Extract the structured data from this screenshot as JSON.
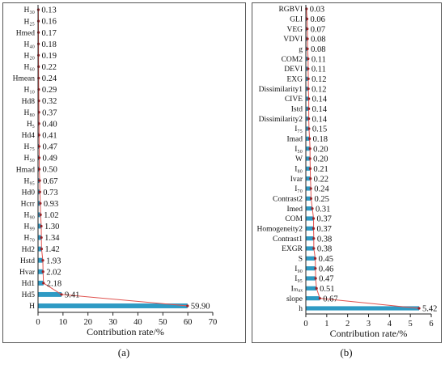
{
  "style": {
    "bar_color": "#2e9ac4",
    "line_color": "#e0534f",
    "dot_color": "#9b2226"
  },
  "panels": [
    {
      "label": "(a)"
    },
    {
      "label": "(b)"
    }
  ],
  "chart_data": [
    {
      "type": "bar",
      "orientation": "horizontal",
      "categories": [
        "H30",
        "H25",
        "Hmed",
        "H40",
        "H20",
        "H60",
        "Hmean",
        "H10",
        "Hd8",
        "H80",
        "H5",
        "Hd4",
        "H75",
        "H50",
        "Hmad",
        "H95",
        "Hd0",
        "Hcrr",
        "H90",
        "H99",
        "H70",
        "Hd2",
        "Hstd",
        "Hvar",
        "Hd1",
        "Hd5",
        "H"
      ],
      "category_labels": [
        "H₃₀",
        "H₂₅",
        "Hmed",
        "H₄₀",
        "H₂₀",
        "H₆₀",
        "Hmean",
        "H₁₀",
        "Hd8",
        "H₈₀",
        "H₅",
        "Hd4",
        "H₇₅",
        "H₅₀",
        "Hmad",
        "H₉₅",
        "Hd0",
        "Hcrr",
        "H₉₀",
        "H₉₉",
        "H₇₀",
        "Hd2",
        "Hstd",
        "Hvar",
        "Hd1",
        "Hd5",
        "H"
      ],
      "values": [
        0.13,
        0.16,
        0.17,
        0.18,
        0.19,
        0.22,
        0.24,
        0.29,
        0.32,
        0.37,
        0.4,
        0.41,
        0.47,
        0.49,
        0.5,
        0.67,
        0.73,
        0.93,
        1.02,
        1.3,
        1.34,
        1.42,
        1.93,
        2.02,
        2.18,
        9.41,
        59.9
      ],
      "value_labels": [
        "0.13",
        "0.16",
        "0.17",
        "0.18",
        "0.19",
        "0.22",
        "0.24",
        "0.29",
        "0.32",
        "0.37",
        "0.40",
        "0.41",
        "0.47",
        "0.49",
        "0.50",
        "0.67",
        "0.73",
        "0.93",
        "1.02",
        "1.30",
        "1.34",
        "1.42",
        "1.93",
        "2.02",
        "2.18",
        "9.41",
        "59.90"
      ],
      "xlabel": "Contribution rate/%",
      "xlim": [
        0,
        70
      ],
      "xticks": [
        0,
        10,
        20,
        30,
        40,
        50,
        60,
        70
      ],
      "grid": false,
      "legend": false
    },
    {
      "type": "bar",
      "orientation": "horizontal",
      "categories": [
        "RGBVI",
        "GLI",
        "VEG",
        "VDVI",
        "g",
        "COM2",
        "DEVI",
        "EXG",
        "Dissimilarity1",
        "CIVE",
        "Istd",
        "Dissimilarity2",
        "I75",
        "Imad",
        "I50",
        "W",
        "I80",
        "Ivar",
        "I70",
        "Contrast2",
        "Imed",
        "COM",
        "Homogeneity2",
        "Contrast1",
        "EXGR",
        "S",
        "I90",
        "I95",
        "Imax",
        "slope",
        "h"
      ],
      "category_labels": [
        "RGBVI",
        "GLI",
        "VEG",
        "VDVI",
        "g",
        "COM2",
        "DEVI",
        "EXG",
        "Dissimilarity1",
        "CIVE",
        "Istd",
        "Dissimilarity2",
        "I₇₅",
        "Imad",
        "I₅₀",
        "W",
        "I₈₀",
        "Ivar",
        "I₇₀",
        "Contrast2",
        "Imed",
        "COM",
        "Homogeneity2",
        "Contrast1",
        "EXGR",
        "S",
        "I₉₀",
        "I₉₅",
        "Iₘₐₓ",
        "slope",
        "h"
      ],
      "values": [
        0.03,
        0.06,
        0.07,
        0.08,
        0.08,
        0.11,
        0.11,
        0.12,
        0.12,
        0.14,
        0.14,
        0.14,
        0.15,
        0.18,
        0.2,
        0.2,
        0.21,
        0.22,
        0.24,
        0.25,
        0.31,
        0.37,
        0.37,
        0.38,
        0.38,
        0.45,
        0.46,
        0.47,
        0.51,
        0.67,
        5.42
      ],
      "value_labels": [
        "0.03",
        "0.06",
        "0.07",
        "0.08",
        "0.08",
        "0.11",
        "0.11",
        "0.12",
        "0.12",
        "0.14",
        "0.14",
        "0.14",
        "0.15",
        "0.18",
        "0.20",
        "0.20",
        "0.21",
        "0.22",
        "0.24",
        "0.25",
        "0.31",
        "0.37",
        "0.37",
        "0.38",
        "0.38",
        "0.45",
        "0.46",
        "0.47",
        "0.51",
        "0.67",
        "5.42"
      ],
      "xlabel": "Contribution rate/%",
      "xlim": [
        0,
        6
      ],
      "xticks": [
        0,
        1,
        2,
        3,
        4,
        5,
        6
      ],
      "grid": false,
      "legend": false
    }
  ]
}
